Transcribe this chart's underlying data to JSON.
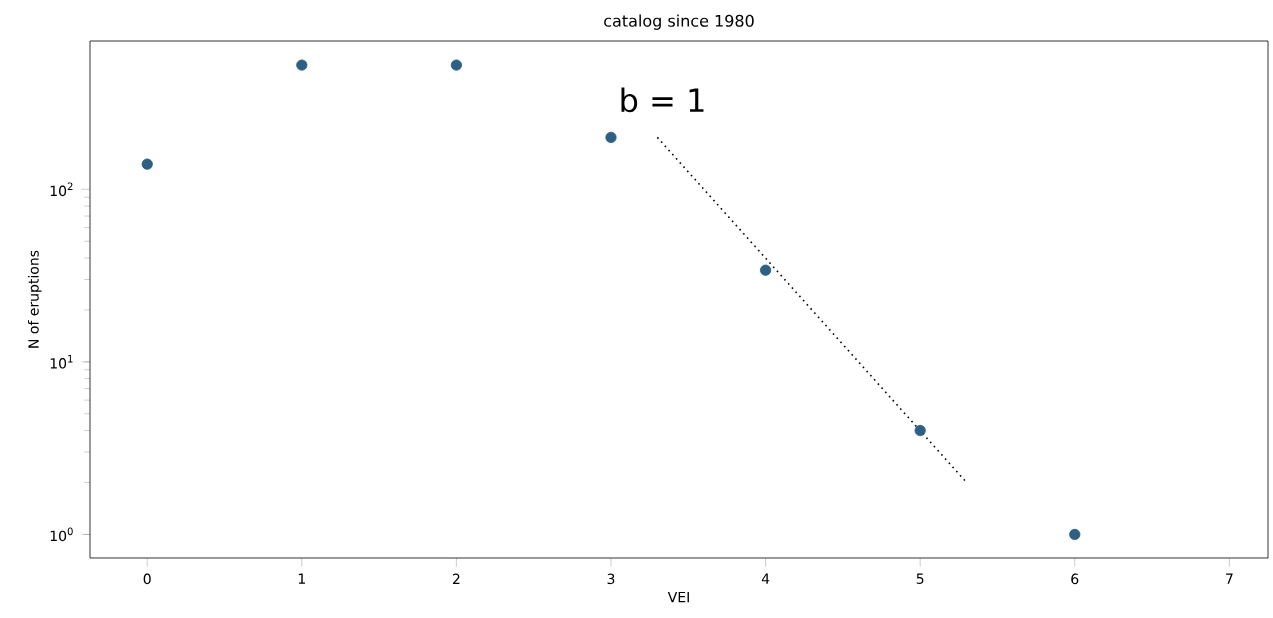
{
  "chart_data": {
    "type": "scatter",
    "title": "catalog since 1980",
    "xlabel": "VEI",
    "ylabel": "N of eruptions",
    "log": "y",
    "xlim": [
      -0.37,
      7.25
    ],
    "ylim": [
      0.73,
      724
    ],
    "xticks": [
      0,
      1,
      2,
      3,
      4,
      5,
      6,
      7
    ],
    "yticks": [
      {
        "value": 1,
        "label": "10$^{0}$"
      },
      {
        "value": 10,
        "label": "10$^{1}$"
      },
      {
        "value": 100,
        "label": "10$^{2}$"
      }
    ],
    "series": [
      {
        "color": "#2b6185",
        "x": [
          0,
          1,
          2,
          3,
          4,
          5,
          6
        ],
        "values": [
          140,
          525,
          525,
          200,
          34,
          4,
          1
        ],
        "marker": "circle"
      },
      {
        "type": "line",
        "color": "#000000",
        "line_style": "dotted",
        "marker": "none",
        "x": [
          3.3,
          5.3
        ],
        "values": [
          200,
          2
        ]
      }
    ],
    "annotations": [
      "b = 1"
    ]
  }
}
